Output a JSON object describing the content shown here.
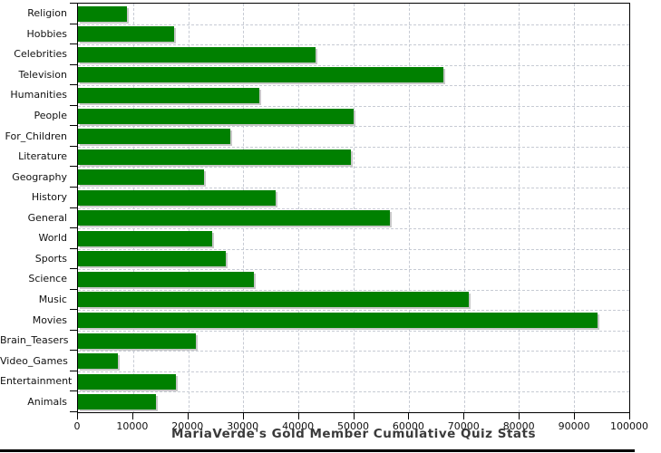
{
  "title": "MariaVerde's Gold Member Cumulative Quiz Stats",
  "colors": {
    "bar": "#008000",
    "bar_shadow": "#c8c8c8",
    "gridline": "#c7cbd4",
    "axis": "#000000",
    "title_text": "#3a3a3a",
    "label_text": "#111111",
    "bottom_edge": "#000000",
    "background": "#ffffff"
  },
  "chart_data": {
    "type": "bar",
    "orientation": "horizontal",
    "title": "MariaVerde's Gold Member Cumulative Quiz Stats",
    "xlabel": "",
    "ylabel": "",
    "xlim": [
      0,
      100000
    ],
    "x_ticks": [
      0,
      10000,
      20000,
      30000,
      40000,
      50000,
      60000,
      70000,
      80000,
      90000,
      100000
    ],
    "grid": "dashed",
    "legend": false,
    "categories": [
      "Religion",
      "Hobbies",
      "Celebrities",
      "Television",
      "Humanities",
      "People",
      "For_Children",
      "Literature",
      "Geography",
      "History",
      "General",
      "World",
      "Sports",
      "Science",
      "Music",
      "Movies",
      "Brain_Teasers",
      "Video_Games",
      "Entertainment",
      "Animals"
    ],
    "values": [
      8900,
      17400,
      43100,
      66300,
      32900,
      50000,
      27600,
      49500,
      22900,
      35900,
      56600,
      24300,
      26800,
      31900,
      70900,
      94200,
      21300,
      7200,
      17800,
      14100
    ]
  }
}
